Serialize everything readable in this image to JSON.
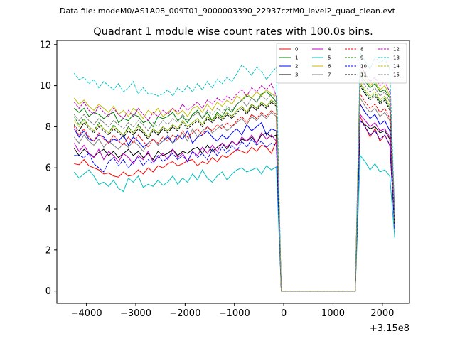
{
  "supertitle": "Data file: modeM0/AS1A08_009T01_9000003390_22937cztM0_level2_quad_clean.evt",
  "chart_data": {
    "type": "line",
    "title": "Quadrant 1 module wise count rates with 100.0s bins.",
    "xlabel": "",
    "ylabel": "",
    "x_offset_label": "+3.15e8",
    "xlim": [
      -4600,
      2550
    ],
    "ylim": [
      -0.6,
      12.2
    ],
    "xticks": [
      -4000,
      -3000,
      -2000,
      -1000,
      0,
      1000,
      2000
    ],
    "xtick_labels": [
      "−4000",
      "−3000",
      "−2000",
      "−1000",
      "0",
      "1000",
      "2000"
    ],
    "yticks": [
      0,
      2,
      4,
      6,
      8,
      10,
      12
    ],
    "ytick_labels": [
      "0",
      "2",
      "4",
      "6",
      "8",
      "10",
      "12"
    ],
    "grid": false,
    "legend_placement": "top-right",
    "gap_start": -50,
    "gap_end": 1450,
    "series": [
      {
        "name": "0",
        "color": "#ff0000",
        "dash": false,
        "pre": [
          6.2,
          6.15,
          6.4,
          6.1,
          6.0,
          5.9,
          5.7,
          5.75,
          5.6,
          5.55,
          5.8,
          5.6,
          5.65,
          5.9,
          5.7,
          6.0,
          5.8,
          6.1,
          6.0,
          6.2,
          6.3,
          6.1,
          6.2,
          6.35,
          6.4,
          6.1,
          6.3,
          6.2,
          6.5,
          6.3,
          6.6,
          6.5,
          6.7,
          6.9,
          6.8,
          6.7,
          7.0,
          6.8,
          7.1,
          7.0,
          6.7,
          7.3
        ],
        "post": [
          8.5,
          8.0,
          7.5,
          7.9,
          7.3,
          7.6,
          7.1,
          3.3
        ]
      },
      {
        "name": "1",
        "color": "#008000",
        "dash": false,
        "pre": [
          8.9,
          8.7,
          8.9,
          8.5,
          8.7,
          8.6,
          8.4,
          8.6,
          8.7,
          8.2,
          8.4,
          8.3,
          8.6,
          8.5,
          8.2,
          8.3,
          8.0,
          8.5,
          8.4,
          8.5,
          8.7,
          8.3,
          8.5,
          8.2,
          8.6,
          8.8,
          8.4,
          8.7,
          8.3,
          8.7,
          8.5,
          8.9,
          8.7,
          9.1,
          9.3,
          9.5,
          9.4,
          9.2,
          9.6,
          9.7,
          9.5,
          9.2
        ],
        "post": [
          10.5,
          10.2,
          9.9,
          10.1,
          9.7,
          9.8,
          9.4,
          3.6
        ]
      },
      {
        "name": "2",
        "color": "#0000ff",
        "dash": false,
        "pre": [
          7.9,
          7.5,
          7.8,
          7.4,
          7.3,
          7.6,
          7.5,
          7.2,
          7.4,
          7.3,
          7.6,
          7.1,
          7.5,
          7.3,
          7.0,
          7.2,
          7.4,
          7.1,
          7.3,
          7.5,
          7.2,
          7.6,
          7.4,
          7.8,
          7.2,
          7.5,
          7.6,
          7.8,
          7.5,
          7.3,
          7.6,
          7.4,
          7.7,
          7.9,
          7.6,
          8.1,
          7.8,
          8.0,
          8.2,
          7.6,
          7.9,
          7.8
        ],
        "post": [
          9.1,
          8.7,
          8.4,
          8.6,
          8.1,
          8.3,
          7.8,
          3.2
        ]
      },
      {
        "name": "3",
        "color": "#000000",
        "dash": false,
        "pre": [
          6.95,
          6.6,
          6.9,
          6.7,
          6.55,
          6.75,
          6.9,
          6.6,
          6.8,
          6.5,
          6.7,
          6.9,
          6.6,
          6.8,
          6.5,
          6.7,
          6.4,
          6.8,
          6.6,
          6.7,
          6.9,
          6.6,
          6.8,
          6.7,
          6.9,
          7.0,
          6.7,
          7.1,
          6.8,
          7.0,
          7.2,
          6.9,
          7.3,
          7.1,
          7.4,
          7.3,
          7.5,
          7.2,
          7.6,
          7.7,
          7.5,
          7.6
        ],
        "post": [
          8.3,
          8.1,
          7.9,
          8.0,
          7.7,
          7.8,
          7.4,
          3.0
        ]
      },
      {
        "name": "4",
        "color": "#bf00bf",
        "dash": false,
        "pre": [
          7.2,
          6.8,
          7.1,
          6.7,
          6.5,
          6.9,
          6.4,
          6.8,
          6.6,
          6.3,
          6.7,
          6.5,
          6.2,
          6.6,
          6.4,
          6.8,
          6.3,
          6.5,
          6.7,
          6.4,
          6.9,
          6.5,
          6.7,
          6.3,
          6.8,
          6.6,
          7.0,
          6.7,
          7.1,
          6.8,
          7.2,
          7.0,
          7.3,
          7.1,
          7.5,
          7.3,
          7.6,
          7.2,
          7.7,
          7.4,
          7.6,
          7.3
        ],
        "post": [
          8.6,
          8.3,
          8.0,
          8.2,
          7.8,
          7.9,
          7.5,
          3.1
        ]
      },
      {
        "name": "5",
        "color": "#00bfbf",
        "dash": false,
        "pre": [
          5.8,
          5.5,
          5.7,
          5.9,
          5.6,
          5.2,
          5.3,
          5.1,
          5.4,
          5.0,
          4.85,
          5.5,
          5.3,
          5.6,
          5.05,
          5.2,
          5.1,
          5.4,
          5.15,
          5.3,
          5.6,
          5.2,
          5.5,
          5.3,
          5.7,
          5.4,
          5.9,
          5.5,
          5.3,
          5.6,
          5.8,
          5.4,
          5.7,
          5.9,
          6.0,
          5.8,
          5.9,
          6.0,
          5.7,
          6.1,
          5.9,
          6.05
        ],
        "post": [
          6.6,
          6.3,
          5.9,
          6.2,
          5.8,
          5.9,
          5.6,
          2.6
        ]
      },
      {
        "name": "6",
        "color": "#bfbf00",
        "dash": false,
        "pre": [
          9.4,
          9.1,
          9.3,
          9.0,
          8.8,
          9.1,
          8.9,
          8.7,
          9.0,
          8.6,
          8.8,
          8.5,
          8.9,
          8.7,
          8.4,
          8.8,
          8.6,
          8.9,
          8.5,
          8.7,
          8.9,
          8.6,
          8.8,
          8.5,
          8.9,
          9.0,
          8.7,
          9.1,
          8.8,
          9.2,
          9.0,
          9.3,
          9.1,
          9.5,
          9.3,
          9.6,
          9.4,
          9.7,
          9.5,
          9.8,
          9.6,
          9.5
        ],
        "post": [
          10.8,
          10.4,
          10.0,
          10.2,
          9.8,
          10.0,
          9.5,
          3.5
        ]
      },
      {
        "name": "7",
        "color": "#808080",
        "dash": false,
        "pre": [
          7.5,
          7.2,
          7.6,
          7.3,
          7.1,
          7.4,
          7.0,
          7.3,
          7.1,
          6.9,
          7.2,
          7.0,
          7.3,
          7.1,
          6.8,
          7.2,
          7.4,
          7.1,
          7.3,
          7.6,
          7.2,
          7.4,
          7.7,
          7.3,
          7.9,
          7.5,
          7.8,
          8.0,
          7.7,
          7.9,
          8.1,
          7.8,
          8.0,
          8.2,
          8.4,
          8.1,
          8.5,
          8.3,
          8.6,
          8.4,
          8.7,
          8.5
        ],
        "post": [
          9.4,
          9.0,
          8.7,
          8.9,
          8.5,
          8.7,
          8.3,
          3.2
        ]
      },
      {
        "name": "8",
        "color": "#ff0000",
        "dash": true,
        "pre": [
          8.0,
          7.6,
          7.9,
          7.5,
          7.3,
          7.7,
          7.4,
          7.2,
          7.6,
          7.3,
          7.1,
          7.5,
          7.2,
          7.6,
          7.3,
          7.0,
          7.4,
          7.2,
          7.5,
          7.3,
          7.6,
          7.4,
          7.8,
          7.5,
          7.7,
          7.9,
          7.6,
          8.0,
          7.8,
          8.1,
          7.9,
          8.2,
          8.0,
          8.3,
          8.5,
          8.2,
          8.6,
          8.4,
          8.7,
          8.5,
          8.8,
          8.6
        ],
        "post": [
          9.6,
          9.2,
          8.9,
          9.1,
          8.7,
          8.9,
          8.4,
          3.3
        ]
      },
      {
        "name": "9",
        "color": "#008000",
        "dash": true,
        "pre": [
          8.5,
          8.1,
          8.4,
          8.0,
          7.8,
          8.2,
          7.9,
          7.7,
          8.1,
          7.8,
          7.6,
          8.0,
          7.7,
          8.1,
          7.8,
          7.5,
          7.9,
          7.7,
          8.0,
          7.8,
          8.1,
          7.9,
          8.3,
          8.0,
          8.2,
          8.4,
          8.1,
          8.5,
          8.3,
          8.6,
          8.4,
          8.7,
          8.5,
          8.8,
          9.0,
          8.7,
          9.1,
          8.9,
          9.2,
          9.0,
          9.3,
          9.1
        ],
        "post": [
          10.1,
          9.7,
          9.4,
          9.6,
          9.2,
          9.4,
          8.9,
          3.4
        ]
      },
      {
        "name": "10",
        "color": "#0000ff",
        "dash": true,
        "pre": [
          6.6,
          6.6,
          6.5,
          6.7,
          6.2,
          6.0,
          5.8,
          6.3,
          6.5,
          6.1,
          6.4,
          6.0,
          6.3,
          6.5,
          6.1,
          6.4,
          6.2,
          6.6,
          6.3,
          6.5,
          6.7,
          6.4,
          6.6,
          6.3,
          6.8,
          6.5,
          6.7,
          6.4,
          6.9,
          6.6,
          7.0,
          6.7,
          7.1,
          6.8,
          7.3,
          7.0,
          7.4,
          7.1,
          7.3,
          7.0,
          7.2,
          7.1
        ],
        "post": [
          8.3,
          8.0,
          7.6,
          7.8,
          7.4,
          7.6,
          7.1,
          3.0
        ]
      },
      {
        "name": "11",
        "color": "#000000",
        "dash": true,
        "pre": [
          8.1,
          7.8,
          8.2,
          7.9,
          7.7,
          8.0,
          7.8,
          7.6,
          7.9,
          7.7,
          7.5,
          7.8,
          7.6,
          7.9,
          7.7,
          7.4,
          7.8,
          7.6,
          7.9,
          7.7,
          8.0,
          7.8,
          8.2,
          7.9,
          8.1,
          8.3,
          8.0,
          8.4,
          8.2,
          8.5,
          8.3,
          8.6,
          8.4,
          8.7,
          8.9,
          8.6,
          9.0,
          8.8,
          9.1,
          8.9,
          9.2,
          9.0
        ],
        "post": [
          10.0,
          9.6,
          9.3,
          9.5,
          9.1,
          9.3,
          8.8,
          3.3
        ]
      },
      {
        "name": "12",
        "color": "#bf00bf",
        "dash": true,
        "pre": [
          9.2,
          8.9,
          9.2,
          8.8,
          8.6,
          9.0,
          8.7,
          8.5,
          8.9,
          8.6,
          8.4,
          8.8,
          8.5,
          8.9,
          8.6,
          8.3,
          8.7,
          8.5,
          8.8,
          8.6,
          8.9,
          8.7,
          9.1,
          8.8,
          9.0,
          9.2,
          8.9,
          9.3,
          9.1,
          9.4,
          9.2,
          9.5,
          9.3,
          9.6,
          9.8,
          9.5,
          9.9,
          9.7,
          10.0,
          9.8,
          10.1,
          9.5
        ],
        "post": [
          11.0,
          10.6,
          10.2,
          10.4,
          10.0,
          10.2,
          9.7,
          3.6
        ]
      },
      {
        "name": "13",
        "color": "#00bfbf",
        "dash": true,
        "pre": [
          10.6,
          10.3,
          10.4,
          10.1,
          10.3,
          9.9,
          10.2,
          10.0,
          9.8,
          10.1,
          9.7,
          9.9,
          10.2,
          9.6,
          9.9,
          9.6,
          9.6,
          9.5,
          9.6,
          9.8,
          9.5,
          9.9,
          9.7,
          10.0,
          9.7,
          10.1,
          9.8,
          10.2,
          9.9,
          10.3,
          10.1,
          10.4,
          10.2,
          10.6,
          11.0,
          10.8,
          10.5,
          10.9,
          10.7,
          10.3,
          10.6,
          10.9
        ],
        "post": [
          11.6,
          11.2,
          10.8,
          11.4,
          11.1,
          11.3,
          10.8,
          3.7
        ]
      },
      {
        "name": "14",
        "color": "#bfbf00",
        "dash": true,
        "pre": [
          8.3,
          8.0,
          8.3,
          8.0,
          7.8,
          8.1,
          7.9,
          7.7,
          8.0,
          7.8,
          7.6,
          7.9,
          7.7,
          8.0,
          7.8,
          7.5,
          7.9,
          7.7,
          8.0,
          7.8,
          8.1,
          7.9,
          8.3,
          8.0,
          8.2,
          8.4,
          8.1,
          8.5,
          8.3,
          8.6,
          8.4,
          8.7,
          8.5,
          8.8,
          9.0,
          8.7,
          9.1,
          8.9,
          9.2,
          9.0,
          9.3,
          9.1
        ],
        "post": [
          10.2,
          9.8,
          9.5,
          9.7,
          9.3,
          9.5,
          9.0,
          3.4
        ]
      },
      {
        "name": "15",
        "color": "#808080",
        "dash": true,
        "pre": [
          8.6,
          8.3,
          8.6,
          8.3,
          8.1,
          8.4,
          8.2,
          8.0,
          8.3,
          8.1,
          7.9,
          8.2,
          8.0,
          8.3,
          8.1,
          7.8,
          8.2,
          8.0,
          8.3,
          8.1,
          8.4,
          8.2,
          8.6,
          8.3,
          8.5,
          8.7,
          8.4,
          8.8,
          8.6,
          8.9,
          8.7,
          9.0,
          8.8,
          9.1,
          9.3,
          9.0,
          9.4,
          9.2,
          9.5,
          9.3,
          9.6,
          9.4
        ],
        "post": [
          10.4,
          10.0,
          9.7,
          9.9,
          9.5,
          9.7,
          9.2,
          3.5
        ]
      }
    ]
  }
}
